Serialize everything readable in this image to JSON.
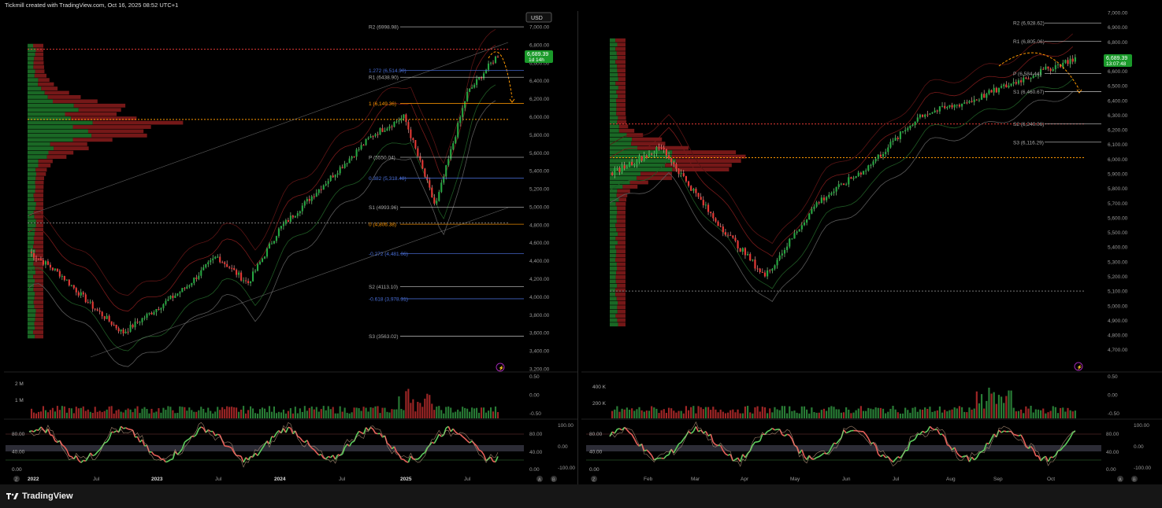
{
  "header": {
    "credit": "Tickmill created with TradingView.com, Oct 16, 2025 08:52 UTC+1"
  },
  "footer": {
    "brand": "TradingView"
  },
  "colors": {
    "up": "#26a641",
    "down": "#e53935",
    "orange": "#ff9800",
    "blue": "#2962ff",
    "price_tag": "#1a9a2a"
  },
  "icons": [
    "tradingview-logo-icon",
    "log-scale-icon",
    "auto-scale-icon",
    "goto-date-icon"
  ],
  "left": {
    "currency": "USD",
    "price_tag": {
      "price": "6,689.39",
      "countdown": "1d 14h"
    },
    "price_axis": [
      "7,000.00",
      "6,800.00",
      "6,600.00",
      "6,400.00",
      "6,200.00",
      "6,000.00",
      "5,800.00",
      "5,600.00",
      "5,400.00",
      "5,200.00",
      "5,000.00",
      "4,800.00",
      "4,600.00",
      "4,400.00",
      "4,200.00",
      "4,000.00",
      "3,800.00",
      "3,600.00",
      "3,400.00",
      "3,200.00"
    ],
    "pivot_labels": [
      {
        "text": "R2 (6998.98)",
        "price": 6999
      },
      {
        "text": "1.272 (6,514.90)",
        "price": 6515
      },
      {
        "text": "R1 (6438.90)",
        "price": 6439
      },
      {
        "text": "1 (6,149.36)",
        "price": 6149
      },
      {
        "text": "P (5550.04)",
        "price": 5550
      },
      {
        "text": "0.382 (5,318.48)",
        "price": 5318
      },
      {
        "text": "S1 (4993.96)",
        "price": 4994
      },
      {
        "text": "0 (4,806.38)",
        "price": 4806
      },
      {
        "text": "-0.272 (4,481.06)",
        "price": 4481
      },
      {
        "text": "S2 (4113.10)",
        "price": 4113
      },
      {
        "text": "-0.618 (3,978.31)",
        "price": 3978
      },
      {
        "text": "S3 (3563.02)",
        "price": 3563
      }
    ],
    "time_axis": [
      "2022",
      "Jul",
      "2023",
      "Jul",
      "2024",
      "Jul",
      "2025",
      "Jul"
    ],
    "volume_axis": [
      "2 M",
      "1 M"
    ],
    "vol_right_axis": [
      "0.50",
      "0.00",
      "-0.50"
    ],
    "osc_left_axis": [
      "80.00",
      "40.00",
      "0.00"
    ],
    "osc_right_axis": [
      "100.00",
      "80.00",
      "0.00",
      "40.00",
      "-100.00",
      "0.00"
    ],
    "axis_badges": [
      "A",
      "B"
    ],
    "corner_badge": "Z"
  },
  "right": {
    "price_tag": {
      "price": "6,689.39",
      "countdown": "13:07:48"
    },
    "price_axis": [
      "7,000.00",
      "6,900.00",
      "6,800.00",
      "6,700.00",
      "6,600.00",
      "6,500.00",
      "6,400.00",
      "6,300.00",
      "6,200.00",
      "6,100.00",
      "6,000.00",
      "5,900.00",
      "5,800.00",
      "5,700.00",
      "5,600.00",
      "5,500.00",
      "5,400.00",
      "5,300.00",
      "5,200.00",
      "5,100.00",
      "5,000.00",
      "4,900.00",
      "4,800.00",
      "4,700.00"
    ],
    "pivot_labels": [
      {
        "text": "R2 (6,928.62)",
        "price": 6929
      },
      {
        "text": "R1 (6,805.06)",
        "price": 6805
      },
      {
        "text": "P (6,584.44)",
        "price": 6584
      },
      {
        "text": "S1 (6,460.67)",
        "price": 6461
      },
      {
        "text": "S2 (6,240.06)",
        "price": 6240
      },
      {
        "text": "S3 (6,116.29)",
        "price": 6116
      }
    ],
    "time_axis": [
      "Feb",
      "Mar",
      "Apr",
      "May",
      "Jun",
      "Jul",
      "Aug",
      "Sep",
      "Oct"
    ],
    "volume_axis": [
      "400 K",
      "200 K"
    ],
    "vol_right_axis": [
      "0.50",
      "0.00",
      "-0.50"
    ],
    "osc_left_axis": [
      "80.00",
      "40.00",
      "0.00"
    ],
    "osc_right_axis": [
      "100.00",
      "80.00",
      "0.00",
      "40.00",
      "-100.00",
      "0.00"
    ],
    "axis_badges": [
      "A",
      "B"
    ],
    "corner_badge": "Z"
  },
  "chart_data": [
    {
      "type": "candlestick",
      "title": "",
      "interval": "weekly",
      "x": [
        "2022-01",
        "2022-04",
        "2022-07",
        "2022-10",
        "2023-01",
        "2023-04",
        "2023-07",
        "2023-10",
        "2024-01",
        "2024-04",
        "2024-07",
        "2024-10",
        "2025-01",
        "2025-04",
        "2025-07",
        "2025-10"
      ],
      "close": [
        4500,
        4250,
        3900,
        3600,
        3850,
        4100,
        4450,
        4150,
        4750,
        5100,
        5450,
        5800,
        6000,
        5000,
        6250,
        6689
      ],
      "ylim": [
        3200,
        7000
      ]
    },
    {
      "type": "candlestick",
      "title": "",
      "interval": "daily",
      "x": [
        "2025-01",
        "2025-02",
        "2025-03",
        "2025-04",
        "2025-05",
        "2025-06",
        "2025-07",
        "2025-08",
        "2025-09",
        "2025-10"
      ],
      "close": [
        5900,
        6080,
        5600,
        5200,
        5700,
        5950,
        6300,
        6400,
        6550,
        6689
      ],
      "ylim": [
        4650,
        7000
      ]
    }
  ]
}
